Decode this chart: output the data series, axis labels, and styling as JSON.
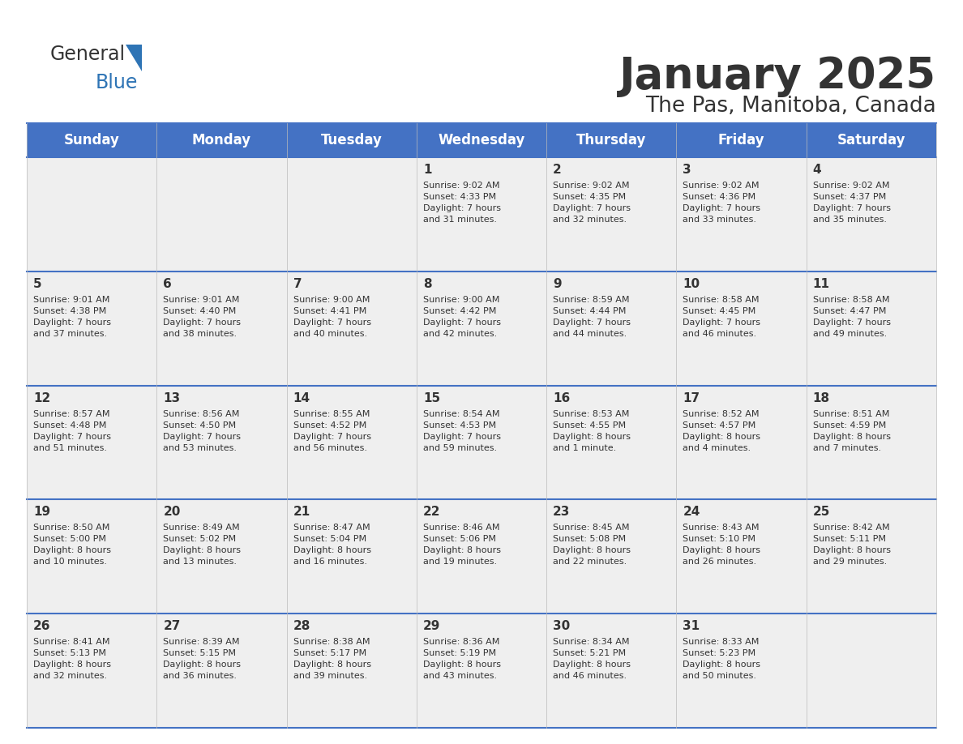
{
  "title": "January 2025",
  "subtitle": "The Pas, Manitoba, Canada",
  "header_bg": "#4472C4",
  "header_text_color": "#FFFFFF",
  "cell_bg_light": "#EFEFEF",
  "cell_bg_white": "#FFFFFF",
  "day_names": [
    "Sunday",
    "Monday",
    "Tuesday",
    "Wednesday",
    "Thursday",
    "Friday",
    "Saturday"
  ],
  "text_color": "#333333",
  "number_color": "#333333",
  "grid_line_color": "#4472C4",
  "logo_general_color": "#333333",
  "logo_blue_color": "#2E74B5",
  "logo_triangle_color": "#2E74B5",
  "weeks": [
    [
      {
        "day": null,
        "info": null
      },
      {
        "day": null,
        "info": null
      },
      {
        "day": null,
        "info": null
      },
      {
        "day": "1",
        "info": "Sunrise: 9:02 AM\nSunset: 4:33 PM\nDaylight: 7 hours\nand 31 minutes."
      },
      {
        "day": "2",
        "info": "Sunrise: 9:02 AM\nSunset: 4:35 PM\nDaylight: 7 hours\nand 32 minutes."
      },
      {
        "day": "3",
        "info": "Sunrise: 9:02 AM\nSunset: 4:36 PM\nDaylight: 7 hours\nand 33 minutes."
      },
      {
        "day": "4",
        "info": "Sunrise: 9:02 AM\nSunset: 4:37 PM\nDaylight: 7 hours\nand 35 minutes."
      }
    ],
    [
      {
        "day": "5",
        "info": "Sunrise: 9:01 AM\nSunset: 4:38 PM\nDaylight: 7 hours\nand 37 minutes."
      },
      {
        "day": "6",
        "info": "Sunrise: 9:01 AM\nSunset: 4:40 PM\nDaylight: 7 hours\nand 38 minutes."
      },
      {
        "day": "7",
        "info": "Sunrise: 9:00 AM\nSunset: 4:41 PM\nDaylight: 7 hours\nand 40 minutes."
      },
      {
        "day": "8",
        "info": "Sunrise: 9:00 AM\nSunset: 4:42 PM\nDaylight: 7 hours\nand 42 minutes."
      },
      {
        "day": "9",
        "info": "Sunrise: 8:59 AM\nSunset: 4:44 PM\nDaylight: 7 hours\nand 44 minutes."
      },
      {
        "day": "10",
        "info": "Sunrise: 8:58 AM\nSunset: 4:45 PM\nDaylight: 7 hours\nand 46 minutes."
      },
      {
        "day": "11",
        "info": "Sunrise: 8:58 AM\nSunset: 4:47 PM\nDaylight: 7 hours\nand 49 minutes."
      }
    ],
    [
      {
        "day": "12",
        "info": "Sunrise: 8:57 AM\nSunset: 4:48 PM\nDaylight: 7 hours\nand 51 minutes."
      },
      {
        "day": "13",
        "info": "Sunrise: 8:56 AM\nSunset: 4:50 PM\nDaylight: 7 hours\nand 53 minutes."
      },
      {
        "day": "14",
        "info": "Sunrise: 8:55 AM\nSunset: 4:52 PM\nDaylight: 7 hours\nand 56 minutes."
      },
      {
        "day": "15",
        "info": "Sunrise: 8:54 AM\nSunset: 4:53 PM\nDaylight: 7 hours\nand 59 minutes."
      },
      {
        "day": "16",
        "info": "Sunrise: 8:53 AM\nSunset: 4:55 PM\nDaylight: 8 hours\nand 1 minute."
      },
      {
        "day": "17",
        "info": "Sunrise: 8:52 AM\nSunset: 4:57 PM\nDaylight: 8 hours\nand 4 minutes."
      },
      {
        "day": "18",
        "info": "Sunrise: 8:51 AM\nSunset: 4:59 PM\nDaylight: 8 hours\nand 7 minutes."
      }
    ],
    [
      {
        "day": "19",
        "info": "Sunrise: 8:50 AM\nSunset: 5:00 PM\nDaylight: 8 hours\nand 10 minutes."
      },
      {
        "day": "20",
        "info": "Sunrise: 8:49 AM\nSunset: 5:02 PM\nDaylight: 8 hours\nand 13 minutes."
      },
      {
        "day": "21",
        "info": "Sunrise: 8:47 AM\nSunset: 5:04 PM\nDaylight: 8 hours\nand 16 minutes."
      },
      {
        "day": "22",
        "info": "Sunrise: 8:46 AM\nSunset: 5:06 PM\nDaylight: 8 hours\nand 19 minutes."
      },
      {
        "day": "23",
        "info": "Sunrise: 8:45 AM\nSunset: 5:08 PM\nDaylight: 8 hours\nand 22 minutes."
      },
      {
        "day": "24",
        "info": "Sunrise: 8:43 AM\nSunset: 5:10 PM\nDaylight: 8 hours\nand 26 minutes."
      },
      {
        "day": "25",
        "info": "Sunrise: 8:42 AM\nSunset: 5:11 PM\nDaylight: 8 hours\nand 29 minutes."
      }
    ],
    [
      {
        "day": "26",
        "info": "Sunrise: 8:41 AM\nSunset: 5:13 PM\nDaylight: 8 hours\nand 32 minutes."
      },
      {
        "day": "27",
        "info": "Sunrise: 8:39 AM\nSunset: 5:15 PM\nDaylight: 8 hours\nand 36 minutes."
      },
      {
        "day": "28",
        "info": "Sunrise: 8:38 AM\nSunset: 5:17 PM\nDaylight: 8 hours\nand 39 minutes."
      },
      {
        "day": "29",
        "info": "Sunrise: 8:36 AM\nSunset: 5:19 PM\nDaylight: 8 hours\nand 43 minutes."
      },
      {
        "day": "30",
        "info": "Sunrise: 8:34 AM\nSunset: 5:21 PM\nDaylight: 8 hours\nand 46 minutes."
      },
      {
        "day": "31",
        "info": "Sunrise: 8:33 AM\nSunset: 5:23 PM\nDaylight: 8 hours\nand 50 minutes."
      },
      {
        "day": null,
        "info": null
      }
    ]
  ]
}
